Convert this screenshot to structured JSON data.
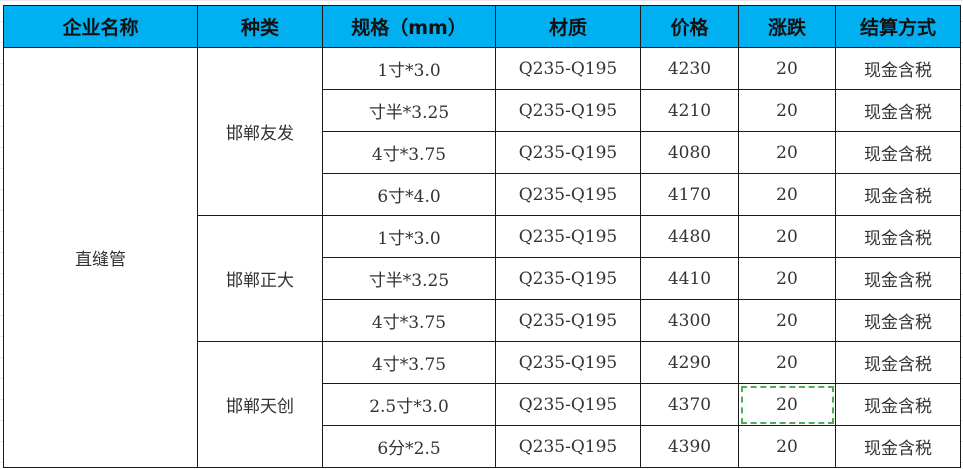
{
  "headers": [
    "企业名称",
    "种类",
    "规格（mm）",
    "材质",
    "价格",
    "涨跌",
    "结算方式"
  ],
  "company": "直缝管",
  "groups": [
    {
      "type": "邯郸友发",
      "rows": [
        {
          "spec": "1寸*3.0",
          "material": "Q235-Q195",
          "price": "4230",
          "change": "20",
          "settlement": "现金含税"
        },
        {
          "spec": "寸半*3.25",
          "material": "Q235-Q195",
          "price": "4210",
          "change": "20",
          "settlement": "现金含税"
        },
        {
          "spec": "4寸*3.75",
          "material": "Q235-Q195",
          "price": "4080",
          "change": "20",
          "settlement": "现金含税"
        },
        {
          "spec": "6寸*4.0",
          "material": "Q235-Q195",
          "price": "4170",
          "change": "20",
          "settlement": "现金含税"
        }
      ]
    },
    {
      "type": "邯郸正大",
      "rows": [
        {
          "spec": "1寸*3.0",
          "material": "Q235-Q195",
          "price": "4480",
          "change": "20",
          "settlement": "现金含税"
        },
        {
          "spec": "寸半*3.25",
          "material": "Q235-Q195",
          "price": "4410",
          "change": "20",
          "settlement": "现金含税"
        },
        {
          "spec": "4寸*3.75",
          "material": "Q235-Q195",
          "price": "4300",
          "change": "20",
          "settlement": "现金含税"
        }
      ]
    },
    {
      "type": "邯郸天创",
      "rows": [
        {
          "spec": "4寸*3.75",
          "material": "Q235-Q195",
          "price": "4290",
          "change": "20",
          "settlement": "现金含税"
        },
        {
          "spec": "2.5寸*3.0",
          "material": "Q235-Q195",
          "price": "4370",
          "change": "20",
          "settlement": "现金含税"
        },
        {
          "spec": "6分*2.5",
          "material": "Q235-Q195",
          "price": "4390",
          "change": "20",
          "settlement": "现金含税"
        }
      ]
    }
  ],
  "colors": {
    "header_bg": "#00b0f0",
    "selection": "#4caf50"
  }
}
